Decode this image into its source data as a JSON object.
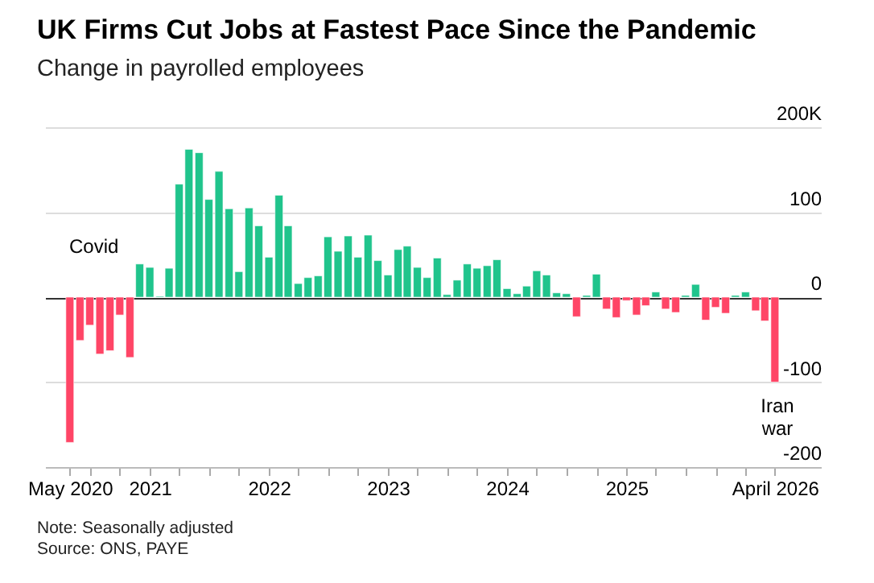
{
  "chart_data": {
    "type": "bar",
    "title": "UK Firms Cut Jobs at Fastest Pace Since the Pandemic",
    "subtitle": "Change in payrolled employees",
    "x": [
      "2020-05",
      "2020-06",
      "2020-07",
      "2020-08",
      "2020-09",
      "2020-10",
      "2020-11",
      "2020-12",
      "2021-01",
      "2021-02",
      "2021-03",
      "2021-04",
      "2021-05",
      "2021-06",
      "2021-07",
      "2021-08",
      "2021-09",
      "2021-10",
      "2021-11",
      "2021-12",
      "2022-01",
      "2022-02",
      "2022-03",
      "2022-04",
      "2022-05",
      "2022-06",
      "2022-07",
      "2022-08",
      "2022-09",
      "2022-10",
      "2022-11",
      "2022-12",
      "2023-01",
      "2023-02",
      "2023-03",
      "2023-04",
      "2023-05",
      "2023-06",
      "2023-07",
      "2023-08",
      "2023-09",
      "2023-10",
      "2023-11",
      "2023-12",
      "2024-01",
      "2024-02",
      "2024-03",
      "2024-04",
      "2024-05",
      "2024-06",
      "2024-07",
      "2024-08",
      "2024-09",
      "2024-10",
      "2024-11",
      "2024-12",
      "2025-01",
      "2025-02",
      "2025-03",
      "2025-04",
      "2025-05",
      "2025-06",
      "2025-07",
      "2025-08",
      "2025-09",
      "2025-10",
      "2025-11",
      "2025-12",
      "2026-01",
      "2026-02",
      "2026-03",
      "2026-04"
    ],
    "values": [
      -171,
      -51,
      -33,
      -67,
      -63,
      -21,
      -71,
      39,
      35,
      1,
      34,
      133,
      174,
      170,
      115,
      148,
      104,
      30,
      105,
      84,
      47,
      120,
      84,
      16,
      23,
      25,
      71,
      54,
      72,
      47,
      73,
      43,
      26,
      56,
      60,
      35,
      23,
      46,
      3,
      20,
      39,
      34,
      37,
      44,
      10,
      4,
      13,
      31,
      26,
      5,
      4,
      -23,
      2,
      27,
      -14,
      -24,
      -4,
      -21,
      -10,
      6,
      -14,
      -18,
      2,
      15,
      -27,
      -12,
      -19,
      2,
      6,
      -16,
      -28,
      -100
    ],
    "colors": [
      "#ff4566",
      "#ff4566",
      "#ff4566",
      "#ff4566",
      "#ff4566",
      "#ff4566",
      "#ff4566",
      "#20c48c",
      "#20c48c",
      "#20c48c",
      "#20c48c",
      "#20c48c",
      "#20c48c",
      "#20c48c",
      "#20c48c",
      "#20c48c",
      "#20c48c",
      "#20c48c",
      "#20c48c",
      "#20c48c",
      "#20c48c",
      "#20c48c",
      "#20c48c",
      "#20c48c",
      "#20c48c",
      "#20c48c",
      "#20c48c",
      "#20c48c",
      "#20c48c",
      "#20c48c",
      "#20c48c",
      "#20c48c",
      "#20c48c",
      "#20c48c",
      "#20c48c",
      "#20c48c",
      "#20c48c",
      "#20c48c",
      "#20c48c",
      "#20c48c",
      "#20c48c",
      "#20c48c",
      "#20c48c",
      "#20c48c",
      "#20c48c",
      "#20c48c",
      "#20c48c",
      "#20c48c",
      "#20c48c",
      "#20c48c",
      "#20c48c",
      "#ff4566",
      "#20c48c",
      "#20c48c",
      "#ff4566",
      "#ff4566",
      "#ff4566",
      "#ff4566",
      "#ff4566",
      "#20c48c",
      "#ff4566",
      "#ff4566",
      "#20c48c",
      "#20c48c",
      "#ff4566",
      "#ff4566",
      "#ff4566",
      "#20c48c",
      "#20c48c",
      "#ff4566",
      "#ff4566",
      "#ff4566"
    ],
    "xlim": [
      "2020-02-15",
      "2026-08-20"
    ],
    "xticks": [
      {
        "value": "2020-05",
        "label": "May 2020"
      },
      {
        "value": "2020-07",
        "label": null
      },
      {
        "value": "2020-10",
        "label": null
      },
      {
        "value": "2021-01",
        "label": "2021"
      },
      {
        "value": "2021-04",
        "label": null
      },
      {
        "value": "2021-07",
        "label": null
      },
      {
        "value": "2021-10",
        "label": null
      },
      {
        "value": "2022-01",
        "label": "2022"
      },
      {
        "value": "2022-04",
        "label": null
      },
      {
        "value": "2022-07",
        "label": null
      },
      {
        "value": "2022-10",
        "label": null
      },
      {
        "value": "2023-01",
        "label": "2023"
      },
      {
        "value": "2023-04",
        "label": null
      },
      {
        "value": "2023-07",
        "label": null
      },
      {
        "value": "2023-10",
        "label": null
      },
      {
        "value": "2024-01",
        "label": "2024"
      },
      {
        "value": "2024-04",
        "label": null
      },
      {
        "value": "2024-07",
        "label": null
      },
      {
        "value": "2024-10",
        "label": null
      },
      {
        "value": "2025-01",
        "label": "2025"
      },
      {
        "value": "2025-04",
        "label": null
      },
      {
        "value": "2025-07",
        "label": null
      },
      {
        "value": "2025-10",
        "label": null
      },
      {
        "value": "2026-01",
        "label": null
      },
      {
        "value": "2026-04",
        "label": "April 2026"
      }
    ],
    "ylim": [
      -200,
      200
    ],
    "yticks": [
      {
        "value": 200,
        "label": "200K"
      },
      100,
      0,
      -100,
      -200
    ],
    "grid": "y",
    "annotations": [
      "Covid",
      "Iran war",
      "Note: Seasonally adjusted",
      "Source: ONS, PAYE"
    ]
  }
}
